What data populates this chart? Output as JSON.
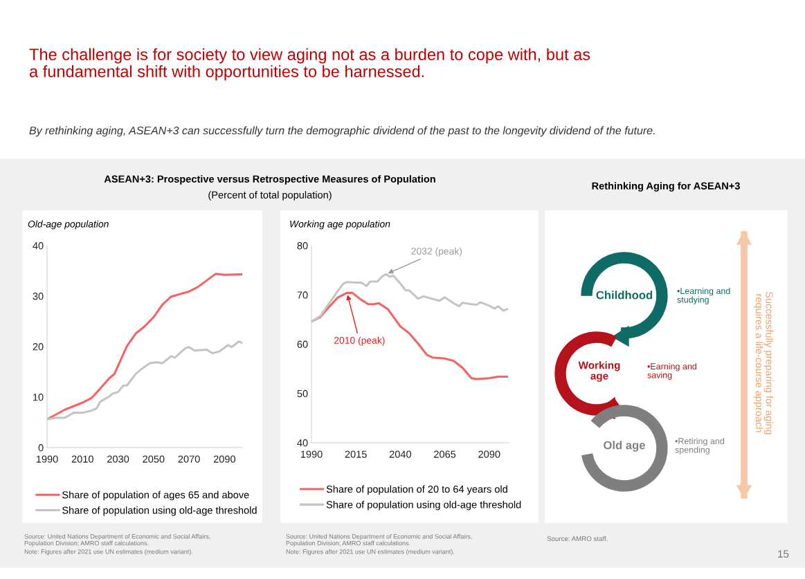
{
  "chart_data": [
    {
      "type": "other",
      "title": "The challenge is for society to view aging not as a burden to cope with, but as a fundamental shift with opportunities to be harnessed.",
      "subtitle": "By rethinking aging, ASEAN+3 can successfully turn the demographic dividend of the past to the longevity dividend of the future.",
      "annotations": [
        "15"
      ]
    },
    {
      "type": "line",
      "title": "ASEAN+3: Prospective versus Retrospective Measures of Population",
      "subtitle": "(Percent of total population)",
      "ylabel": "Old-age population",
      "xlim": [
        1990,
        2100
      ],
      "xticks": [
        1990,
        2010,
        2030,
        2050,
        2070,
        2090
      ],
      "ylim": [
        0,
        40
      ],
      "yticks": [
        0,
        10,
        20,
        30,
        40
      ],
      "grid": false,
      "legend": "bottom",
      "series": [
        {
          "name": "Share of population of ages 65 and above",
          "color": "#f26363",
          "x": [
            1990,
            2000,
            2010,
            2015,
            2020,
            2025,
            2028,
            2035,
            2040,
            2045,
            2050,
            2055,
            2060,
            2070,
            2075,
            2080,
            2085,
            2090,
            2100
          ],
          "values": [
            5.6,
            7.5,
            8.9,
            9.8,
            11.7,
            13.7,
            14.6,
            20.1,
            22.6,
            24.0,
            25.8,
            28.3,
            29.9,
            30.9,
            31.8,
            33.1,
            34.4,
            34.2,
            34.3
          ]
        },
        {
          "name": "Share of population using old-age threshold",
          "color": "#c4c4c4",
          "x": [
            1990,
            1995,
            2000,
            2005,
            2010,
            2015,
            2018,
            2020,
            2025,
            2027,
            2030,
            2033,
            2035,
            2040,
            2043,
            2048,
            2052,
            2055,
            2060,
            2062,
            2068,
            2070,
            2073,
            2080,
            2083,
            2087,
            2092,
            2094,
            2098,
            2100
          ],
          "values": [
            5.6,
            5.9,
            5.9,
            6.9,
            6.9,
            7.3,
            7.8,
            9.1,
            10.1,
            10.7,
            11.0,
            12.3,
            12.3,
            14.6,
            15.5,
            16.7,
            16.9,
            16.7,
            18.1,
            17.8,
            19.7,
            19.9,
            19.2,
            19.4,
            18.7,
            19.0,
            20.3,
            19.9,
            21.0,
            20.7
          ]
        }
      ],
      "annotations": [
        "Source: United Nations Department of Economic and Social Affairs, Population Division; AMRO staff calculations.",
        "Note: Figures after 2021 use UN estimates (medium variant)."
      ]
    },
    {
      "type": "line",
      "ylabel": "Working age population",
      "xlim": [
        1990,
        2101
      ],
      "xticks": [
        1990,
        2015,
        2040,
        2065,
        2090
      ],
      "ylim": [
        40,
        80
      ],
      "yticks": [
        40,
        50,
        60,
        70,
        80
      ],
      "grid": false,
      "legend": "bottom",
      "series": [
        {
          "name": "Share of population of 20 to 64 years old",
          "color": "#f26363",
          "x": [
            1990,
            1995,
            2000,
            2005,
            2010,
            2013,
            2018,
            2022,
            2025,
            2028,
            2033,
            2040,
            2045,
            2050,
            2055,
            2058,
            2065,
            2070,
            2075,
            2080,
            2083,
            2090,
            2095,
            2100
          ],
          "values": [
            64.6,
            65.5,
            67.6,
            69.5,
            70.4,
            70.4,
            69.0,
            68.1,
            68.1,
            68.3,
            67.1,
            63.6,
            62.2,
            60.1,
            57.8,
            57.3,
            57.1,
            56.6,
            55.2,
            53.1,
            52.9,
            53.1,
            53.4,
            53.4
          ]
        },
        {
          "name": "Share of population using old-age threshold",
          "color": "#c4c4c4",
          "x": [
            1990,
            1995,
            2000,
            2005,
            2008,
            2010,
            2015,
            2018,
            2021,
            2023,
            2027,
            2030,
            2032,
            2034,
            2036,
            2040,
            2043,
            2045,
            2050,
            2053,
            2058,
            2062,
            2065,
            2070,
            2073,
            2075,
            2080,
            2083,
            2085,
            2090,
            2093,
            2095,
            2098,
            2100
          ],
          "values": [
            64.6,
            65.7,
            68.3,
            70.9,
            72.3,
            72.6,
            72.5,
            72.5,
            71.8,
            72.7,
            72.7,
            73.8,
            74.2,
            73.7,
            73.9,
            72.3,
            70.9,
            70.9,
            69.2,
            69.7,
            69.2,
            68.8,
            69.5,
            68.3,
            67.7,
            68.4,
            68.1,
            68.0,
            68.5,
            67.8,
            67.2,
            67.7,
            66.8,
            67.1
          ]
        }
      ],
      "annotations": [
        {
          "text": "2032 (peak)",
          "x": 2032,
          "y": 74.2
        },
        {
          "text": "2010 (peak)",
          "x": 2010,
          "y": 70.4
        },
        "Source: United Nations Department of Economic and Social Affairs, Population Division; AMRO staff calculations.",
        "Note: Figures after 2021 use UN estimates (medium variant)."
      ]
    },
    {
      "type": "other",
      "title": "Rethinking Aging for ASEAN+3",
      "annotations": [
        "Childhood",
        "Working age",
        "Old age",
        "•Learning and studying",
        "•Earning and saving",
        "•Retiring and spending",
        "Successfully preparing for aging requires a life-course approach",
        "Source: AMRO staff."
      ]
    }
  ]
}
